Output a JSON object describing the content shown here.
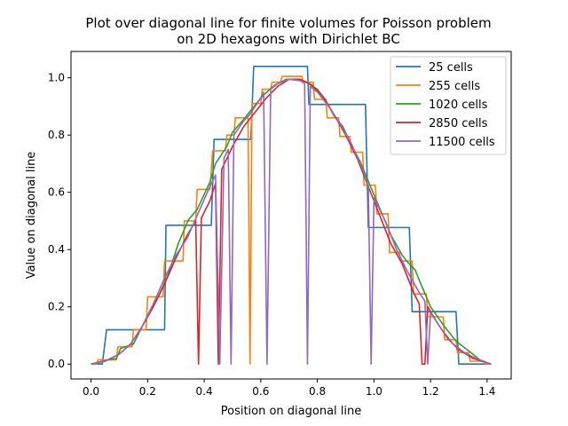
{
  "chart_data": {
    "type": "line",
    "title": [
      "Plot over diagonal line for finite volumes for Poisson problem",
      "on 2D  hexagons with Dirichlet BC"
    ],
    "xlabel": "Position on diagonal line",
    "ylabel": "Value on diagonal line",
    "xlim": [
      -0.0707,
      1.485
    ],
    "ylim": [
      -0.052,
      1.092
    ],
    "xticks": [
      0.0,
      0.2,
      0.4,
      0.6,
      0.8,
      1.0,
      1.2,
      1.4
    ],
    "xtick_labels": [
      "0.0",
      "0.2",
      "0.4",
      "0.6",
      "0.8",
      "1.0",
      "1.2",
      "1.4"
    ],
    "yticks": [
      0.0,
      0.2,
      0.4,
      0.6,
      0.8,
      1.0
    ],
    "ytick_labels": [
      "0.0",
      "0.2",
      "0.4",
      "0.6",
      "0.8",
      "1.0"
    ],
    "grid": false,
    "legend_position": "upper right",
    "series": [
      {
        "name": "25 cells",
        "color": "#1f77b4",
        "points": [
          [
            0.0,
            0.0
          ],
          [
            0.04,
            0.0
          ],
          [
            0.055,
            0.12
          ],
          [
            0.26,
            0.12
          ],
          [
            0.265,
            0.485
          ],
          [
            0.425,
            0.485
          ],
          [
            0.435,
            0.785
          ],
          [
            0.565,
            0.785
          ],
          [
            0.575,
            1.04
          ],
          [
            0.765,
            1.04
          ],
          [
            0.77,
            0.907
          ],
          [
            0.97,
            0.907
          ],
          [
            0.98,
            0.477
          ],
          [
            1.125,
            0.477
          ],
          [
            1.135,
            0.183
          ],
          [
            1.29,
            0.183
          ],
          [
            1.3,
            0.0
          ],
          [
            1.414,
            0.0
          ]
        ]
      },
      {
        "name": "255 cells",
        "color": "#ff7f0e",
        "points": [
          [
            0.0,
            0.0
          ],
          [
            0.02,
            0.0
          ],
          [
            0.025,
            0.015
          ],
          [
            0.09,
            0.015
          ],
          [
            0.095,
            0.06
          ],
          [
            0.145,
            0.06
          ],
          [
            0.15,
            0.12
          ],
          [
            0.195,
            0.12
          ],
          [
            0.2,
            0.235
          ],
          [
            0.255,
            0.235
          ],
          [
            0.26,
            0.36
          ],
          [
            0.325,
            0.36
          ],
          [
            0.33,
            0.5
          ],
          [
            0.37,
            0.5
          ],
          [
            0.375,
            0.61
          ],
          [
            0.42,
            0.61
          ],
          [
            0.43,
            0.745
          ],
          [
            0.475,
            0.745
          ],
          [
            0.48,
            0.8
          ],
          [
            0.505,
            0.8
          ],
          [
            0.51,
            0.86
          ],
          [
            0.555,
            0.86
          ],
          [
            0.562,
            0.0
          ],
          [
            0.569,
            0.91
          ],
          [
            0.6,
            0.91
          ],
          [
            0.605,
            0.96
          ],
          [
            0.635,
            0.96
          ],
          [
            0.64,
            0.985
          ],
          [
            0.67,
            0.985
          ],
          [
            0.675,
            1.005
          ],
          [
            0.745,
            1.005
          ],
          [
            0.75,
            0.985
          ],
          [
            0.785,
            0.985
          ],
          [
            0.79,
            0.925
          ],
          [
            0.83,
            0.925
          ],
          [
            0.835,
            0.86
          ],
          [
            0.875,
            0.86
          ],
          [
            0.88,
            0.795
          ],
          [
            0.915,
            0.795
          ],
          [
            0.92,
            0.74
          ],
          [
            0.96,
            0.74
          ],
          [
            0.965,
            0.625
          ],
          [
            1.005,
            0.625
          ],
          [
            1.01,
            0.525
          ],
          [
            1.05,
            0.525
          ],
          [
            1.055,
            0.39
          ],
          [
            1.09,
            0.39
          ],
          [
            1.095,
            0.36
          ],
          [
            1.135,
            0.36
          ],
          [
            1.14,
            0.245
          ],
          [
            1.185,
            0.245
          ],
          [
            1.19,
            0.165
          ],
          [
            1.245,
            0.165
          ],
          [
            1.25,
            0.085
          ],
          [
            1.29,
            0.085
          ],
          [
            1.295,
            0.04
          ],
          [
            1.335,
            0.04
          ],
          [
            1.34,
            0.01
          ],
          [
            1.39,
            0.01
          ],
          [
            1.395,
            0.0
          ],
          [
            1.414,
            0.0
          ]
        ]
      },
      {
        "name": "1020 cells",
        "color": "#2ca02c",
        "points": [
          [
            0.0,
            0.0
          ],
          [
            0.04,
            0.01
          ],
          [
            0.09,
            0.02
          ],
          [
            0.105,
            0.055
          ],
          [
            0.15,
            0.07
          ],
          [
            0.19,
            0.15
          ],
          [
            0.24,
            0.24
          ],
          [
            0.27,
            0.305
          ],
          [
            0.31,
            0.425
          ],
          [
            0.345,
            0.505
          ],
          [
            0.375,
            0.54
          ],
          [
            0.42,
            0.635
          ],
          [
            0.44,
            0.7
          ],
          [
            0.48,
            0.76
          ],
          [
            0.5,
            0.81
          ],
          [
            0.54,
            0.855
          ],
          [
            0.58,
            0.905
          ],
          [
            0.61,
            0.94
          ],
          [
            0.65,
            0.975
          ],
          [
            0.69,
            0.995
          ],
          [
            0.73,
            0.995
          ],
          [
            0.76,
            0.985
          ],
          [
            0.8,
            0.96
          ],
          [
            0.83,
            0.92
          ],
          [
            0.86,
            0.865
          ],
          [
            0.89,
            0.83
          ],
          [
            0.92,
            0.765
          ],
          [
            0.95,
            0.71
          ],
          [
            0.99,
            0.615
          ],
          [
            1.02,
            0.545
          ],
          [
            1.06,
            0.45
          ],
          [
            1.1,
            0.38
          ],
          [
            1.12,
            0.355
          ],
          [
            1.145,
            0.33
          ],
          [
            1.17,
            0.27
          ],
          [
            1.2,
            0.2
          ],
          [
            1.25,
            0.13
          ],
          [
            1.29,
            0.08
          ],
          [
            1.33,
            0.05
          ],
          [
            1.38,
            0.01
          ],
          [
            1.414,
            0.0
          ]
        ]
      },
      {
        "name": "2850 cells",
        "color": "#d62728",
        "points": [
          [
            0.0,
            0.0
          ],
          [
            0.05,
            0.01
          ],
          [
            0.1,
            0.035
          ],
          [
            0.14,
            0.07
          ],
          [
            0.18,
            0.13
          ],
          [
            0.22,
            0.2
          ],
          [
            0.26,
            0.28
          ],
          [
            0.3,
            0.37
          ],
          [
            0.34,
            0.45
          ],
          [
            0.37,
            0.5
          ],
          [
            0.38,
            0.0
          ],
          [
            0.39,
            0.51
          ],
          [
            0.42,
            0.57
          ],
          [
            0.44,
            0.63
          ],
          [
            0.45,
            0.0
          ],
          [
            0.462,
            0.68
          ],
          [
            0.5,
            0.76
          ],
          [
            0.54,
            0.83
          ],
          [
            0.58,
            0.88
          ],
          [
            0.62,
            0.93
          ],
          [
            0.66,
            0.97
          ],
          [
            0.7,
            0.995
          ],
          [
            0.74,
            0.995
          ],
          [
            0.78,
            0.975
          ],
          [
            0.82,
            0.935
          ],
          [
            0.86,
            0.87
          ],
          [
            0.9,
            0.8
          ],
          [
            0.94,
            0.72
          ],
          [
            0.98,
            0.62
          ],
          [
            1.02,
            0.52
          ],
          [
            1.06,
            0.42
          ],
          [
            1.1,
            0.35
          ],
          [
            1.14,
            0.25
          ],
          [
            1.16,
            0.21
          ],
          [
            1.17,
            0.0
          ],
          [
            1.18,
            0.0
          ],
          [
            1.19,
            0.2
          ],
          [
            1.22,
            0.15
          ],
          [
            1.26,
            0.09
          ],
          [
            1.3,
            0.05
          ],
          [
            1.35,
            0.02
          ],
          [
            1.414,
            0.0
          ]
        ]
      },
      {
        "name": "11500 cells",
        "color": "#9467bd",
        "points": [
          [
            0.0,
            0.0
          ],
          [
            0.05,
            0.01
          ],
          [
            0.1,
            0.035
          ],
          [
            0.14,
            0.07
          ],
          [
            0.18,
            0.13
          ],
          [
            0.22,
            0.21
          ],
          [
            0.26,
            0.3
          ],
          [
            0.3,
            0.38
          ],
          [
            0.34,
            0.44
          ],
          [
            0.38,
            0.53
          ],
          [
            0.42,
            0.62
          ],
          [
            0.44,
            0.66
          ],
          [
            0.455,
            0.0
          ],
          [
            0.47,
            0.72
          ],
          [
            0.485,
            0.75
          ],
          [
            0.495,
            0.0
          ],
          [
            0.505,
            0.8
          ],
          [
            0.54,
            0.85
          ],
          [
            0.56,
            0.87
          ],
          [
            0.58,
            0.9
          ],
          [
            0.6,
            0.93
          ],
          [
            0.61,
            0.95
          ],
          [
            0.622,
            0.0
          ],
          [
            0.635,
            0.96
          ],
          [
            0.66,
            0.98
          ],
          [
            0.7,
            0.995
          ],
          [
            0.74,
            0.99
          ],
          [
            0.755,
            0.98
          ],
          [
            0.765,
            0.0
          ],
          [
            0.775,
            0.97
          ],
          [
            0.8,
            0.95
          ],
          [
            0.84,
            0.9
          ],
          [
            0.88,
            0.84
          ],
          [
            0.92,
            0.77
          ],
          [
            0.96,
            0.68
          ],
          [
            0.98,
            0.62
          ],
          [
            0.99,
            0.0
          ],
          [
            1.0,
            0.58
          ],
          [
            1.04,
            0.5
          ],
          [
            1.08,
            0.4
          ],
          [
            1.12,
            0.32
          ],
          [
            1.16,
            0.25
          ],
          [
            1.18,
            0.22
          ],
          [
            1.19,
            0.0
          ],
          [
            1.2,
            0.18
          ],
          [
            1.24,
            0.12
          ],
          [
            1.28,
            0.07
          ],
          [
            1.32,
            0.04
          ],
          [
            1.36,
            0.02
          ],
          [
            1.414,
            0.0
          ]
        ]
      }
    ]
  }
}
